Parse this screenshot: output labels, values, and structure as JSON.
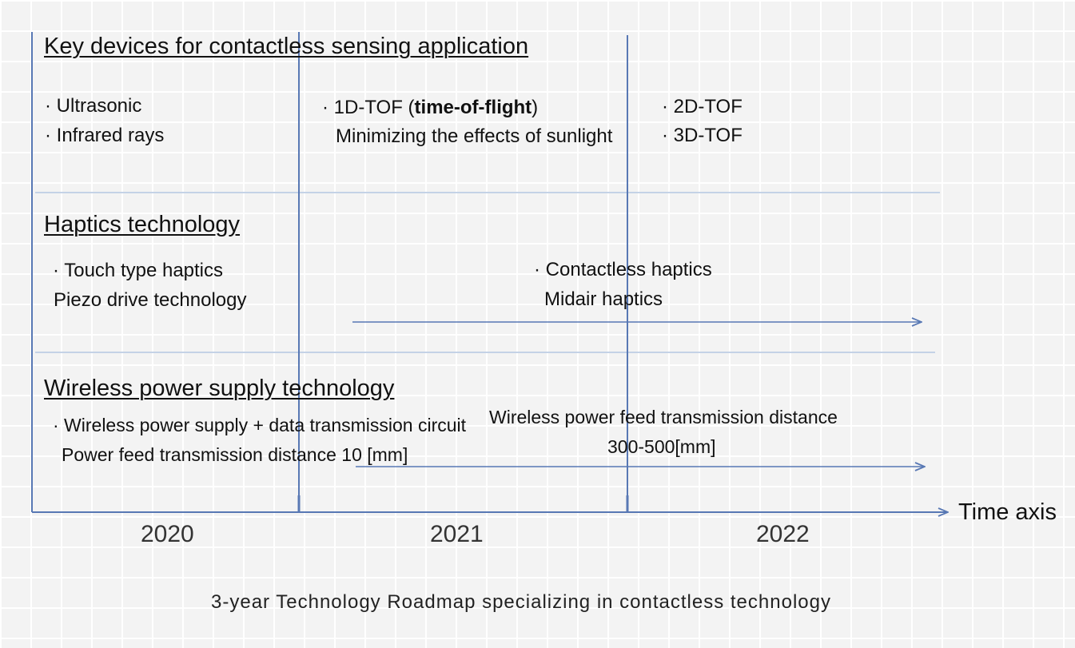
{
  "colors": {
    "line": "#5878b4",
    "divider": "#c4d2e6",
    "background": "#f3f3f3",
    "grid": "#ffffff"
  },
  "sections": {
    "sensing": {
      "heading": "Key devices for contactless sensing application",
      "col2020": [
        "· Ultrasonic",
        "· Infrared rays"
      ],
      "col2021_prefix": "· 1D-TOF (",
      "col2021_bold": "time-of-flight",
      "col2021_suffix": ")",
      "col2021_sub": "Minimizing the effects of sunlight",
      "col2022": [
        "· 2D-TOF",
        "· 3D-TOF"
      ]
    },
    "haptics": {
      "heading": "Haptics technology",
      "col2020": [
        "· Touch type haptics",
        "Piezo drive technology"
      ],
      "future": [
        "· Contactless haptics",
        "Midair haptics"
      ]
    },
    "wireless": {
      "heading": "Wireless power supply technology",
      "col2020": [
        "· Wireless power supply + data transmission circuit",
        "Power feed transmission distance 10 [mm]"
      ],
      "future": [
        "Wireless power feed transmission distance",
        "300-500[mm]"
      ]
    }
  },
  "axis": {
    "label": "Time axis",
    "years": [
      "2020",
      "2021",
      "2022"
    ]
  },
  "caption": "3-year Technology Roadmap specializing in contactless technology"
}
